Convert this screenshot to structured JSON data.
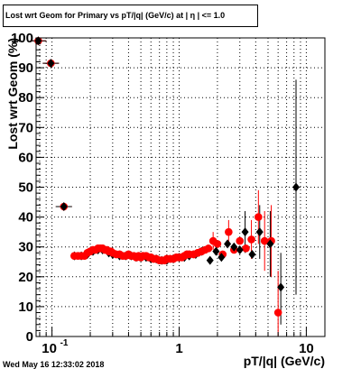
{
  "title": "Lost wrt Geom for Primary vs pT/|q| (GeV/c) at | η | <= 1.0",
  "timestamp": "Wed May 16 12:33:02 2018",
  "chart_data": {
    "type": "scatter",
    "xlabel": "pT/|q| (GeV/c)",
    "ylabel": "Lost wrt Geom (%)",
    "x_scale": "log",
    "xlim": [
      0.075,
      14
    ],
    "ylim": [
      0,
      100
    ],
    "grid": true,
    "x_ticklabels": [
      {
        "value": 0.1,
        "label": "10",
        "exp": "-1"
      },
      {
        "value": 1,
        "label": "1"
      },
      {
        "value": 10,
        "label": "10"
      }
    ],
    "y_ticklabels": [
      "0",
      "10",
      "20",
      "30",
      "40",
      "50",
      "60",
      "70",
      "80",
      "90",
      "100"
    ],
    "series": [
      {
        "color": "#ff0000",
        "marker": "circle",
        "points": [
          {
            "x": 0.078,
            "y": 99
          },
          {
            "x": 0.098,
            "y": 91.5
          },
          {
            "x": 0.124,
            "y": 43.5
          },
          {
            "x": 0.15,
            "y": 27
          },
          {
            "x": 0.16,
            "y": 27
          },
          {
            "x": 0.17,
            "y": 27
          },
          {
            "x": 0.18,
            "y": 27
          },
          {
            "x": 0.19,
            "y": 28
          },
          {
            "x": 0.2,
            "y": 28.5
          },
          {
            "x": 0.21,
            "y": 29
          },
          {
            "x": 0.22,
            "y": 29
          },
          {
            "x": 0.23,
            "y": 29.5
          },
          {
            "x": 0.24,
            "y": 29.5
          },
          {
            "x": 0.25,
            "y": 29.5
          },
          {
            "x": 0.26,
            "y": 29
          },
          {
            "x": 0.27,
            "y": 29
          },
          {
            "x": 0.28,
            "y": 28.5
          },
          {
            "x": 0.29,
            "y": 28.5
          },
          {
            "x": 0.3,
            "y": 28
          },
          {
            "x": 0.32,
            "y": 27.5
          },
          {
            "x": 0.34,
            "y": 27.5
          },
          {
            "x": 0.36,
            "y": 27
          },
          {
            "x": 0.38,
            "y": 27
          },
          {
            "x": 0.4,
            "y": 27.5
          },
          {
            "x": 0.42,
            "y": 27
          },
          {
            "x": 0.44,
            "y": 27
          },
          {
            "x": 0.46,
            "y": 26.5
          },
          {
            "x": 0.48,
            "y": 27
          },
          {
            "x": 0.5,
            "y": 26.5
          },
          {
            "x": 0.52,
            "y": 27
          },
          {
            "x": 0.55,
            "y": 27
          },
          {
            "x": 0.58,
            "y": 26.5
          },
          {
            "x": 0.6,
            "y": 26.5
          },
          {
            "x": 0.63,
            "y": 26
          },
          {
            "x": 0.66,
            "y": 26
          },
          {
            "x": 0.7,
            "y": 25.5
          },
          {
            "x": 0.73,
            "y": 25.5
          },
          {
            "x": 0.77,
            "y": 25.5
          },
          {
            "x": 0.8,
            "y": 26
          },
          {
            "x": 0.85,
            "y": 26
          },
          {
            "x": 0.9,
            "y": 26
          },
          {
            "x": 0.95,
            "y": 26.5
          },
          {
            "x": 1.0,
            "y": 26.5
          },
          {
            "x": 1.05,
            "y": 26.5
          },
          {
            "x": 1.1,
            "y": 27
          },
          {
            "x": 1.15,
            "y": 27.5
          },
          {
            "x": 1.2,
            "y": 27.5
          },
          {
            "x": 1.3,
            "y": 27.5
          },
          {
            "x": 1.4,
            "y": 28
          },
          {
            "x": 1.5,
            "y": 28.5
          },
          {
            "x": 1.6,
            "y": 29
          },
          {
            "x": 1.7,
            "y": 29.5
          },
          {
            "x": 1.85,
            "y": 32
          },
          {
            "x": 2.0,
            "y": 31
          },
          {
            "x": 2.2,
            "y": 27.5
          },
          {
            "x": 2.45,
            "y": 35
          },
          {
            "x": 2.7,
            "y": 29
          },
          {
            "x": 3.0,
            "y": 32
          },
          {
            "x": 3.35,
            "y": 29.5
          },
          {
            "x": 3.7,
            "y": 32.5
          },
          {
            "x": 4.2,
            "y": 40
          },
          {
            "x": 4.7,
            "y": 32
          },
          {
            "x": 5.3,
            "y": 32
          },
          {
            "x": 6.0,
            "y": 8
          }
        ]
      },
      {
        "color": "#000000",
        "marker": "diamond",
        "points": [
          {
            "x": 0.078,
            "y": 99
          },
          {
            "x": 0.098,
            "y": 91.5
          },
          {
            "x": 0.124,
            "y": 43.5
          },
          {
            "x": 0.15,
            "y": 27
          },
          {
            "x": 0.17,
            "y": 27
          },
          {
            "x": 0.19,
            "y": 27.5
          },
          {
            "x": 0.21,
            "y": 28.5
          },
          {
            "x": 0.23,
            "y": 29
          },
          {
            "x": 0.25,
            "y": 29
          },
          {
            "x": 0.28,
            "y": 28
          },
          {
            "x": 0.3,
            "y": 27.5
          },
          {
            "x": 0.34,
            "y": 27
          },
          {
            "x": 0.38,
            "y": 27
          },
          {
            "x": 0.42,
            "y": 27
          },
          {
            "x": 0.46,
            "y": 26.5
          },
          {
            "x": 0.5,
            "y": 26.5
          },
          {
            "x": 0.55,
            "y": 26.5
          },
          {
            "x": 0.6,
            "y": 26
          },
          {
            "x": 0.66,
            "y": 26
          },
          {
            "x": 0.73,
            "y": 25.5
          },
          {
            "x": 0.8,
            "y": 25.5
          },
          {
            "x": 0.9,
            "y": 26
          },
          {
            "x": 1.0,
            "y": 26.5
          },
          {
            "x": 1.1,
            "y": 26.5
          },
          {
            "x": 1.2,
            "y": 27
          },
          {
            "x": 1.35,
            "y": 27.5
          },
          {
            "x": 1.5,
            "y": 28.5
          },
          {
            "x": 1.75,
            "y": 25.5
          },
          {
            "x": 1.95,
            "y": 28.5
          },
          {
            "x": 2.15,
            "y": 26.5
          },
          {
            "x": 2.4,
            "y": 31
          },
          {
            "x": 2.7,
            "y": 30
          },
          {
            "x": 3.0,
            "y": 29
          },
          {
            "x": 3.3,
            "y": 35
          },
          {
            "x": 3.75,
            "y": 27.5
          },
          {
            "x": 4.3,
            "y": 35
          },
          {
            "x": 5.2,
            "y": 31
          },
          {
            "x": 6.3,
            "y": 16.5
          },
          {
            "x": 8.3,
            "y": 50
          }
        ]
      }
    ],
    "error_bars": [
      {
        "x": 1.85,
        "y": 32,
        "low": 29,
        "high": 35,
        "color": "#ff0000"
      },
      {
        "x": 2.45,
        "y": 35,
        "low": 31,
        "high": 39,
        "color": "#ff0000"
      },
      {
        "x": 3.7,
        "y": 32.5,
        "low": 26,
        "high": 39,
        "color": "#ff0000"
      },
      {
        "x": 4.2,
        "y": 40,
        "low": 31,
        "high": 49,
        "color": "#ff0000"
      },
      {
        "x": 4.7,
        "y": 32,
        "low": 22,
        "high": 42,
        "color": "#ff0000"
      },
      {
        "x": 5.3,
        "y": 32,
        "low": 20,
        "high": 44,
        "color": "#ff0000"
      },
      {
        "x": 6.0,
        "y": 8,
        "low": 0,
        "high": 22,
        "color": "#ff0000"
      },
      {
        "x": 3.3,
        "y": 35,
        "low": 28,
        "high": 42,
        "color": "#000000"
      },
      {
        "x": 4.3,
        "y": 35,
        "low": 26,
        "high": 44,
        "color": "#000000"
      },
      {
        "x": 5.2,
        "y": 31,
        "low": 20,
        "high": 42,
        "color": "#000000"
      },
      {
        "x": 6.3,
        "y": 16.5,
        "low": 4,
        "high": 28,
        "color": "#000000"
      },
      {
        "x": 8.3,
        "y": 50,
        "low": 14,
        "high": 86,
        "color": "#000000"
      }
    ]
  }
}
